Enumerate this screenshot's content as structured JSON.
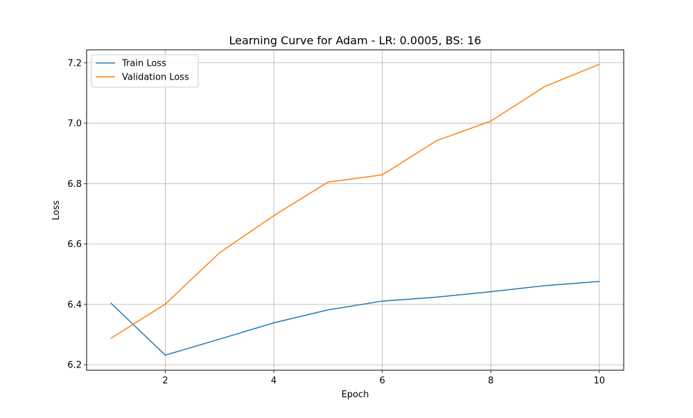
{
  "chart_data": {
    "type": "line",
    "title": "Learning Curve for Adam - LR: 0.0005, BS: 16",
    "xlabel": "Epoch",
    "ylabel": "Loss",
    "x": [
      1,
      2,
      3,
      4,
      5,
      6,
      7,
      8,
      9,
      10
    ],
    "xlim": [
      0.55,
      10.45
    ],
    "ylim": [
      6.182,
      7.243
    ],
    "xticks": [
      2,
      4,
      6,
      8,
      10
    ],
    "yticks": [
      6.2,
      6.4,
      6.6,
      6.8,
      7.0,
      7.2
    ],
    "xtick_labels": [
      "2",
      "4",
      "6",
      "8",
      "10"
    ],
    "ytick_labels": [
      "6.2",
      "6.4",
      "6.6",
      "6.8",
      "7.0",
      "7.2"
    ],
    "grid": true,
    "legend_position": "upper-left",
    "series": [
      {
        "name": "Train Loss",
        "color": "#1f77b4",
        "values": [
          6.404,
          6.232,
          6.285,
          6.339,
          6.382,
          6.411,
          6.424,
          6.442,
          6.462,
          6.476
        ]
      },
      {
        "name": "Validation Loss",
        "color": "#ff7f0e",
        "values": [
          6.288,
          6.401,
          6.571,
          6.694,
          6.805,
          6.829,
          6.942,
          7.007,
          7.122,
          7.195
        ]
      }
    ]
  }
}
